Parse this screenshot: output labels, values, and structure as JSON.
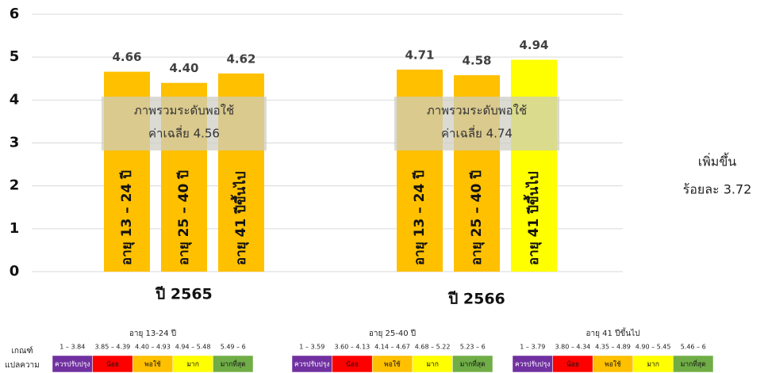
{
  "chart_data": {
    "type": "bar",
    "categories": [
      "อายุ 13 – 24 ปี",
      "อายุ 25 – 40 ปี",
      "อายุ 41 ปีขึ้นไป"
    ],
    "series": [
      {
        "name": "ปี 2565",
        "colors": [
          "#ffc000",
          "#ffc000",
          "#ffc000"
        ],
        "values": [
          4.66,
          4.4,
          4.62
        ],
        "value_labels": [
          "4.66",
          "4.40",
          "4.62"
        ]
      },
      {
        "name": "ปี 2566",
        "colors": [
          "#ffc000",
          "#ffc000",
          "#ffff00"
        ],
        "values": [
          4.71,
          4.58,
          4.94
        ],
        "value_labels": [
          "4.71",
          "4.58",
          "4.94"
        ]
      }
    ],
    "ylim": [
      0,
      6
    ],
    "yticks": [
      0,
      1,
      2,
      3,
      4,
      5,
      6
    ],
    "grid": true,
    "annotations": [
      {
        "lines": [
          "ภาพรวมระดับพอใช้",
          "ค่าเฉลี่ย 4.56"
        ]
      },
      {
        "lines": [
          "ภาพรวมระดับพอใช้",
          "ค่าเฉลี่ย 4.74"
        ]
      }
    ],
    "side_note": [
      "เพิ่มขึ้น",
      "ร้อยละ 3.72"
    ],
    "criteria": {
      "label": [
        "เกณฑ์",
        "แปลความ"
      ],
      "levels": [
        {
          "name": "ควรปรับปรุง",
          "color": "#7030a0"
        },
        {
          "name": "น้อย",
          "color": "#ff0000"
        },
        {
          "name": "พอใช้",
          "color": "#ffc000"
        },
        {
          "name": "มาก",
          "color": "#ffff00"
        },
        {
          "name": "มากที่สุด",
          "color": "#70ad47"
        }
      ],
      "tables": [
        {
          "title": "อายุ 13-24 ปี",
          "ranges": [
            "1 – 3.84",
            "3.85 – 4.39",
            "4.40 – 4.93",
            "4.94 – 5.48",
            "5.49 – 6"
          ]
        },
        {
          "title": "อายุ 25-40 ปี",
          "ranges": [
            "1 – 3.59",
            "3.60 – 4.13",
            "4.14 – 4.67",
            "4.68 – 5.22",
            "5.23 – 6"
          ]
        },
        {
          "title": "อายุ 41 ปีขึ้นไป",
          "ranges": [
            "1 – 3.79",
            "3.80 – 4.34",
            "4.35 – 4.89",
            "4.90 – 5.45",
            "5.46 – 6"
          ]
        }
      ]
    }
  }
}
